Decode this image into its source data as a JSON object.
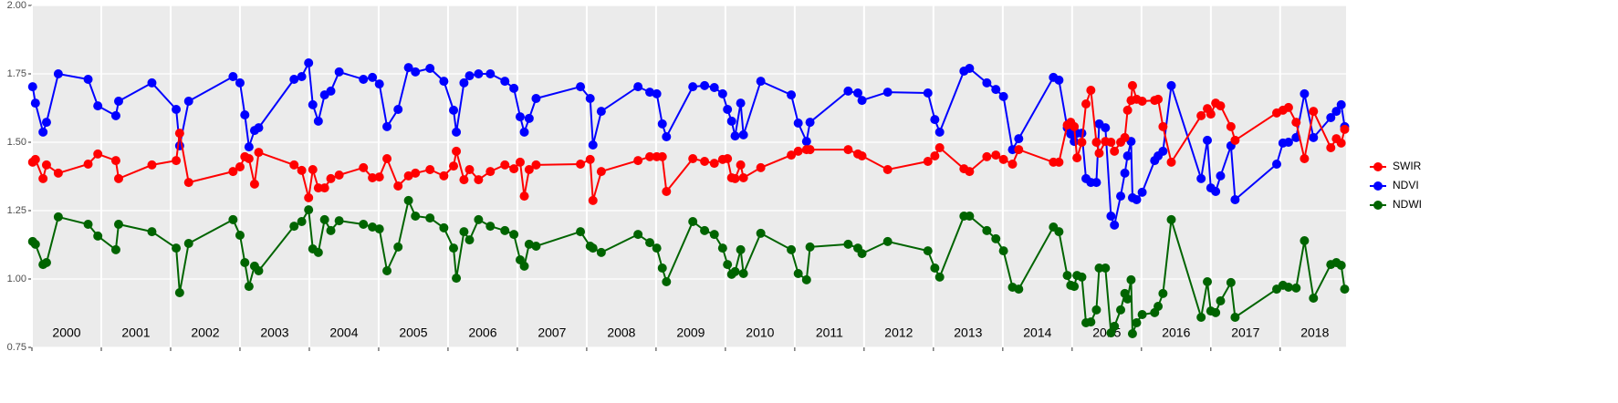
{
  "chart_data": {
    "type": "line",
    "x": [
      2000.01,
      2000.05,
      2000.16,
      2000.21,
      2000.38,
      2000.81,
      2000.95,
      2001.21,
      2001.25,
      2001.73,
      2002.08,
      2002.13,
      2002.26,
      2002.9,
      2003.0,
      2003.07,
      2003.13,
      2003.21,
      2003.27,
      2003.78,
      2003.89,
      2003.99,
      2004.05,
      2004.13,
      2004.22,
      2004.31,
      2004.43,
      2004.78,
      2004.91,
      2005.01,
      2005.12,
      2005.28,
      2005.43,
      2005.53,
      2005.74,
      2005.94,
      2006.08,
      2006.12,
      2006.23,
      2006.31,
      2006.44,
      2006.61,
      2006.82,
      2006.95,
      2007.04,
      2007.1,
      2007.17,
      2007.27,
      2007.91,
      2008.05,
      2008.09,
      2008.21,
      2008.74,
      2008.91,
      2009.01,
      2009.09,
      2009.15,
      2009.53,
      2009.7,
      2009.84,
      2009.96,
      2010.03,
      2010.09,
      2010.14,
      2010.22,
      2010.26,
      2010.51,
      2010.95,
      2011.05,
      2011.17,
      2011.22,
      2011.77,
      2011.91,
      2011.97,
      2012.34,
      2012.92,
      2013.02,
      2013.09,
      2013.44,
      2013.52,
      2013.77,
      2013.9,
      2014.01,
      2014.14,
      2014.23,
      2014.73,
      2014.81,
      2014.93,
      2014.98,
      2015.03,
      2015.07,
      2015.14,
      2015.2,
      2015.27,
      2015.35,
      2015.39,
      2015.48,
      2015.56,
      2015.61,
      2015.7,
      2015.76,
      2015.8,
      2015.85,
      2015.87,
      2015.93,
      2016.01,
      2016.19,
      2016.24,
      2016.31,
      2016.43,
      2016.86,
      2016.95,
      2017.0,
      2017.07,
      2017.14,
      2017.29,
      2017.35,
      2017.95,
      2018.04,
      2018.12,
      2018.23,
      2018.35,
      2018.48,
      2018.73,
      2018.81,
      2018.88,
      2018.93
    ],
    "series": [
      {
        "name": "SWIR",
        "color": "#ff0000",
        "values": [
          1.427,
          1.437,
          1.367,
          1.417,
          1.387,
          1.42,
          1.457,
          1.433,
          1.367,
          1.417,
          1.433,
          1.533,
          1.353,
          1.393,
          1.41,
          1.447,
          1.44,
          1.347,
          1.463,
          1.417,
          1.397,
          1.297,
          1.4,
          1.333,
          1.333,
          1.367,
          1.38,
          1.407,
          1.37,
          1.373,
          1.44,
          1.34,
          1.377,
          1.387,
          1.4,
          1.377,
          1.413,
          1.467,
          1.363,
          1.4,
          1.363,
          1.393,
          1.417,
          1.403,
          1.427,
          1.303,
          1.4,
          1.417,
          1.42,
          1.437,
          1.287,
          1.393,
          1.433,
          1.447,
          1.447,
          1.447,
          1.32,
          1.44,
          1.43,
          1.423,
          1.437,
          1.44,
          1.37,
          1.367,
          1.417,
          1.37,
          1.407,
          1.453,
          1.467,
          1.473,
          1.473,
          1.473,
          1.457,
          1.45,
          1.4,
          1.43,
          1.45,
          1.48,
          1.403,
          1.393,
          1.447,
          1.453,
          1.437,
          1.42,
          1.473,
          1.427,
          1.427,
          1.563,
          1.573,
          1.557,
          1.443,
          1.5,
          1.64,
          1.69,
          1.5,
          1.46,
          1.503,
          1.5,
          1.467,
          1.5,
          1.517,
          1.617,
          1.653,
          1.707,
          1.657,
          1.65,
          1.653,
          1.657,
          1.557,
          1.427,
          1.597,
          1.623,
          1.603,
          1.643,
          1.633,
          1.557,
          1.507,
          1.607,
          1.617,
          1.627,
          1.573,
          1.44,
          1.613,
          1.48,
          1.513,
          1.497,
          1.547
        ]
      },
      {
        "name": "NDVI",
        "color": "#0000ff",
        "values": [
          1.703,
          1.643,
          1.537,
          1.573,
          1.75,
          1.73,
          1.633,
          1.597,
          1.65,
          1.717,
          1.62,
          1.487,
          1.65,
          1.74,
          1.717,
          1.6,
          1.483,
          1.543,
          1.553,
          1.73,
          1.74,
          1.79,
          1.637,
          1.577,
          1.673,
          1.687,
          1.757,
          1.73,
          1.737,
          1.713,
          1.557,
          1.62,
          1.773,
          1.757,
          1.77,
          1.723,
          1.617,
          1.537,
          1.717,
          1.743,
          1.75,
          1.75,
          1.723,
          1.697,
          1.593,
          1.537,
          1.587,
          1.66,
          1.703,
          1.66,
          1.49,
          1.613,
          1.703,
          1.683,
          1.677,
          1.567,
          1.52,
          1.703,
          1.707,
          1.7,
          1.677,
          1.62,
          1.577,
          1.523,
          1.643,
          1.527,
          1.723,
          1.673,
          1.57,
          1.503,
          1.573,
          1.687,
          1.68,
          1.653,
          1.683,
          1.68,
          1.583,
          1.537,
          1.76,
          1.77,
          1.717,
          1.693,
          1.667,
          1.473,
          1.513,
          1.737,
          1.727,
          1.553,
          1.53,
          1.503,
          1.533,
          1.533,
          1.367,
          1.353,
          1.353,
          1.567,
          1.553,
          1.23,
          1.197,
          1.303,
          1.387,
          1.45,
          1.503,
          1.297,
          1.29,
          1.317,
          1.433,
          1.45,
          1.467,
          1.707,
          1.367,
          1.507,
          1.333,
          1.32,
          1.377,
          1.487,
          1.29,
          1.42,
          1.497,
          1.5,
          1.517,
          1.677,
          1.517,
          1.59,
          1.613,
          1.637,
          1.557
        ]
      },
      {
        "name": "NDWI",
        "color": "#006400",
        "values": [
          1.137,
          1.127,
          1.053,
          1.06,
          1.227,
          1.2,
          1.157,
          1.107,
          1.2,
          1.173,
          1.113,
          0.95,
          1.13,
          1.217,
          1.16,
          1.06,
          0.973,
          1.047,
          1.03,
          1.193,
          1.21,
          1.253,
          1.11,
          1.097,
          1.217,
          1.177,
          1.213,
          1.2,
          1.19,
          1.183,
          1.03,
          1.117,
          1.287,
          1.23,
          1.223,
          1.187,
          1.113,
          1.003,
          1.173,
          1.143,
          1.217,
          1.193,
          1.177,
          1.163,
          1.07,
          1.047,
          1.127,
          1.12,
          1.173,
          1.12,
          1.113,
          1.097,
          1.163,
          1.133,
          1.113,
          1.04,
          0.99,
          1.21,
          1.177,
          1.163,
          1.113,
          1.053,
          1.017,
          1.027,
          1.107,
          1.02,
          1.167,
          1.107,
          1.02,
          0.997,
          1.117,
          1.127,
          1.113,
          1.093,
          1.137,
          1.103,
          1.04,
          1.007,
          1.23,
          1.23,
          1.177,
          1.147,
          1.103,
          0.97,
          0.963,
          1.19,
          1.173,
          1.013,
          0.977,
          0.973,
          1.013,
          1.007,
          0.84,
          0.843,
          0.887,
          1.04,
          1.04,
          0.803,
          0.827,
          0.887,
          0.947,
          0.927,
          0.997,
          0.8,
          0.84,
          0.87,
          0.877,
          0.9,
          0.947,
          1.217,
          0.86,
          0.99,
          0.883,
          0.877,
          0.92,
          0.987,
          0.86,
          0.963,
          0.977,
          0.97,
          0.967,
          1.14,
          0.93,
          1.053,
          1.06,
          1.05,
          0.963
        ]
      }
    ],
    "xlim": [
      2000,
      2018.95
    ],
    "xticks": [
      2000,
      2001,
      2002,
      2003,
      2004,
      2005,
      2006,
      2007,
      2008,
      2009,
      2010,
      2011,
      2012,
      2013,
      2014,
      2015,
      2016,
      2017,
      2018
    ],
    "year_labels": [
      {
        "value": 2000.5,
        "label": "2000"
      },
      {
        "value": 2001.5,
        "label": "2001"
      },
      {
        "value": 2002.5,
        "label": "2002"
      },
      {
        "value": 2003.5,
        "label": "2003"
      },
      {
        "value": 2004.5,
        "label": "2004"
      },
      {
        "value": 2005.5,
        "label": "2005"
      },
      {
        "value": 2006.5,
        "label": "2006"
      },
      {
        "value": 2007.5,
        "label": "2007"
      },
      {
        "value": 2008.5,
        "label": "2008"
      },
      {
        "value": 2009.5,
        "label": "2009"
      },
      {
        "value": 2010.5,
        "label": "2010"
      },
      {
        "value": 2011.5,
        "label": "2011"
      },
      {
        "value": 2012.5,
        "label": "2012"
      },
      {
        "value": 2013.5,
        "label": "2013"
      },
      {
        "value": 2014.5,
        "label": "2014"
      },
      {
        "value": 2015.5,
        "label": "2015"
      },
      {
        "value": 2016.5,
        "label": "2016"
      },
      {
        "value": 2017.5,
        "label": "2017"
      },
      {
        "value": 2018.5,
        "label": "2018"
      }
    ],
    "ylim": [
      0.75,
      2.0
    ],
    "yticks": [
      {
        "value": 0.75,
        "label": "0.75"
      },
      {
        "value": 1.0,
        "label": "1.00"
      },
      {
        "value": 1.25,
        "label": "1.25"
      },
      {
        "value": 1.5,
        "label": "1.50"
      },
      {
        "value": 1.75,
        "label": "1.75"
      },
      {
        "value": 2.0,
        "label": "2.00"
      }
    ],
    "grid": true,
    "legend": "right"
  }
}
